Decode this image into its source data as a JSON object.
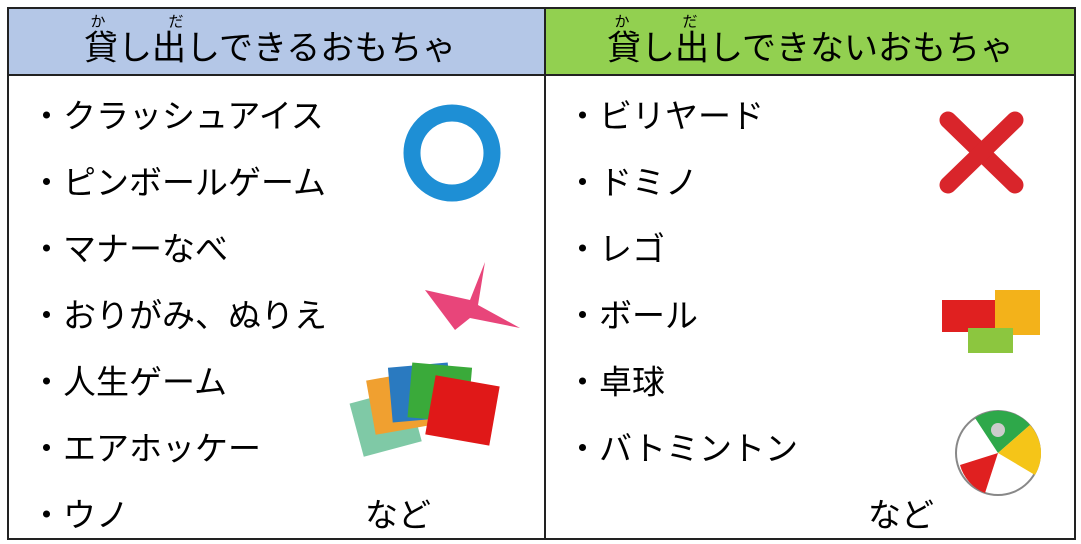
{
  "columns": [
    {
      "title": "貸し出しできるおもちゃ",
      "ruby": [
        "か",
        "だ"
      ],
      "items": [
        "・クラッシュアイス",
        "・ピンボールゲーム",
        "・マナーなべ",
        "・おりがみ、ぬりえ",
        "・人生ゲーム",
        "・エアホッケー",
        "・ウノ"
      ],
      "suffix": "など"
    },
    {
      "title": "貸し出しできないおもちゃ",
      "ruby": [
        "か",
        "だ"
      ],
      "items": [
        "・ビリヤード",
        "・ドミノ",
        "・レゴ",
        "・ボール",
        "・卓球",
        "・バトミントン"
      ],
      "suffix": "など"
    }
  ]
}
